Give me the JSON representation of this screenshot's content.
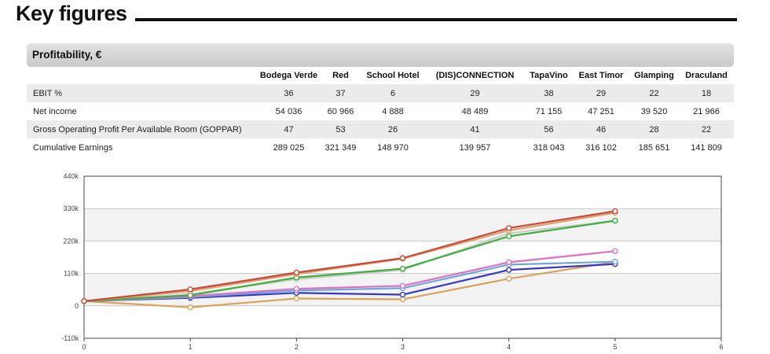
{
  "page": {
    "title": "Key figures"
  },
  "section": {
    "title": "Profitability, €"
  },
  "table": {
    "columns": [
      "Bodega Verde",
      "Red",
      "School Hotel",
      "(DIS)CONNECTION",
      "TapaVino",
      "East Timor",
      "Glamping",
      "Draculand"
    ],
    "rows": [
      {
        "label": "EBIT %",
        "values": [
          "36",
          "37",
          "6",
          "29",
          "38",
          "29",
          "22",
          "18"
        ]
      },
      {
        "label": "Net income",
        "values": [
          "54 036",
          "60 966",
          "4 888",
          "48 489",
          "71 155",
          "47 251",
          "39 520",
          "21 966"
        ]
      },
      {
        "label": "Gross Operating Profit Per Available Room (GOPPAR)",
        "values": [
          "47",
          "53",
          "26",
          "41",
          "56",
          "46",
          "28",
          "22"
        ]
      },
      {
        "label": "Cumulative Earnings",
        "values": [
          "289 025",
          "321 349",
          "148 970",
          "139 957",
          "318 043",
          "316 102",
          "185 651",
          "141 809"
        ]
      }
    ]
  },
  "chart_data": {
    "type": "line",
    "x": [
      0,
      1,
      2,
      3,
      4,
      5
    ],
    "xlim": [
      0,
      6
    ],
    "ylim": [
      -110000,
      440000
    ],
    "x_ticks": [
      "0",
      "1",
      "2",
      "3",
      "4",
      "5",
      "6"
    ],
    "y_ticks": [
      {
        "value": -110000,
        "label": "-110k"
      },
      {
        "value": 0,
        "label": "0"
      },
      {
        "value": 110000,
        "label": "110k"
      },
      {
        "value": 220000,
        "label": "220k"
      },
      {
        "value": 330000,
        "label": "330k"
      },
      {
        "value": 440000,
        "label": "440k"
      }
    ],
    "grid": true,
    "legend": "none",
    "series": [
      {
        "color": "#d9a35a",
        "values": [
          16000,
          -5000,
          25000,
          22000,
          92000,
          148970
        ]
      },
      {
        "color": "#3838c8",
        "values": [
          16000,
          27000,
          44000,
          38000,
          122000,
          141809
        ]
      },
      {
        "color": "#6fa8d8",
        "values": [
          16000,
          30000,
          52000,
          60000,
          140000,
          150000
        ]
      },
      {
        "color": "#e070c0",
        "values": [
          16000,
          33000,
          58000,
          68000,
          148000,
          185651
        ]
      },
      {
        "color": "#cccccc",
        "values": [
          16000,
          40000,
          90000,
          122000,
          246000,
          289025
        ]
      },
      {
        "color": "#3fae3f",
        "values": [
          16000,
          36000,
          96000,
          126000,
          236000,
          289025
        ]
      },
      {
        "color": "#e0a070",
        "values": [
          16000,
          50000,
          108000,
          160000,
          256000,
          316102
        ]
      },
      {
        "color": "#c84a3a",
        "values": [
          16000,
          56000,
          113000,
          162000,
          264000,
          321349
        ]
      }
    ]
  }
}
